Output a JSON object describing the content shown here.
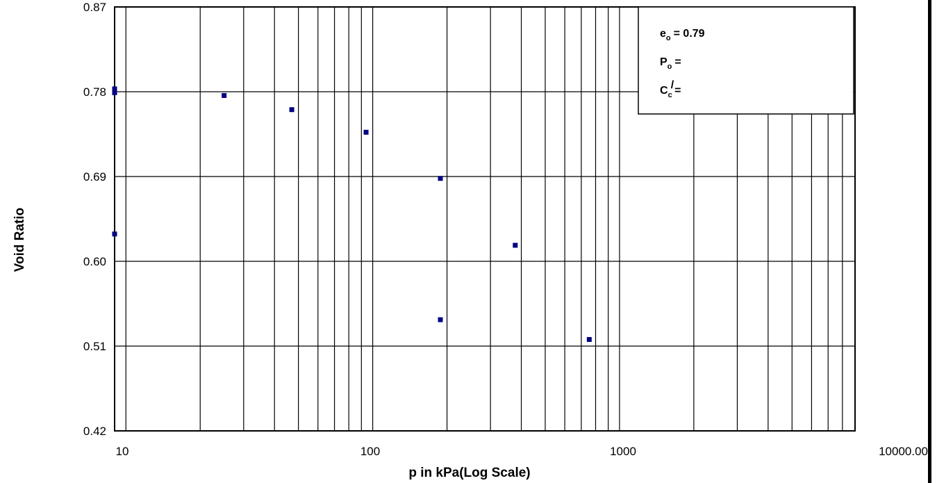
{
  "chart_data": {
    "type": "scatter",
    "xlabel": "p in kPa(Log Scale)",
    "ylabel": "Void Ratio",
    "x_scale": "log",
    "xlim": [
      9,
      9000
    ],
    "ylim": [
      0.42,
      0.87
    ],
    "x_ticks": [
      {
        "value": 10,
        "label": "10"
      },
      {
        "value": 100,
        "label": "100"
      },
      {
        "value": 1000,
        "label": "1000"
      },
      {
        "value": 10000,
        "label": "10000.00"
      }
    ],
    "y_ticks": [
      {
        "value": 0.42,
        "label": "0.42"
      },
      {
        "value": 0.51,
        "label": "0.51"
      },
      {
        "value": 0.6,
        "label": "0.60"
      },
      {
        "value": 0.69,
        "label": "0.69"
      },
      {
        "value": 0.78,
        "label": "0.78"
      },
      {
        "value": 0.87,
        "label": "0.87"
      }
    ],
    "grid": true,
    "marker_color": "#000080",
    "points": [
      {
        "x": 9.0,
        "y": 0.783
      },
      {
        "x": 9.0,
        "y": 0.779
      },
      {
        "x": 9.0,
        "y": 0.629
      },
      {
        "x": 25,
        "y": 0.776
      },
      {
        "x": 47,
        "y": 0.761
      },
      {
        "x": 94,
        "y": 0.737
      },
      {
        "x": 188,
        "y": 0.688
      },
      {
        "x": 188,
        "y": 0.538
      },
      {
        "x": 378,
        "y": 0.617
      },
      {
        "x": 754,
        "y": 0.517
      }
    ],
    "legend": {
      "placement": "top-right",
      "e0_label": "e",
      "e0_sub": "o",
      "e0_value": "= 0.79",
      "p0_label": "P",
      "p0_sub": "o",
      "p0_value": "=",
      "cc_label": "C",
      "cc_sub": "c",
      "cc_sup": "/",
      "cc_value": "="
    }
  }
}
